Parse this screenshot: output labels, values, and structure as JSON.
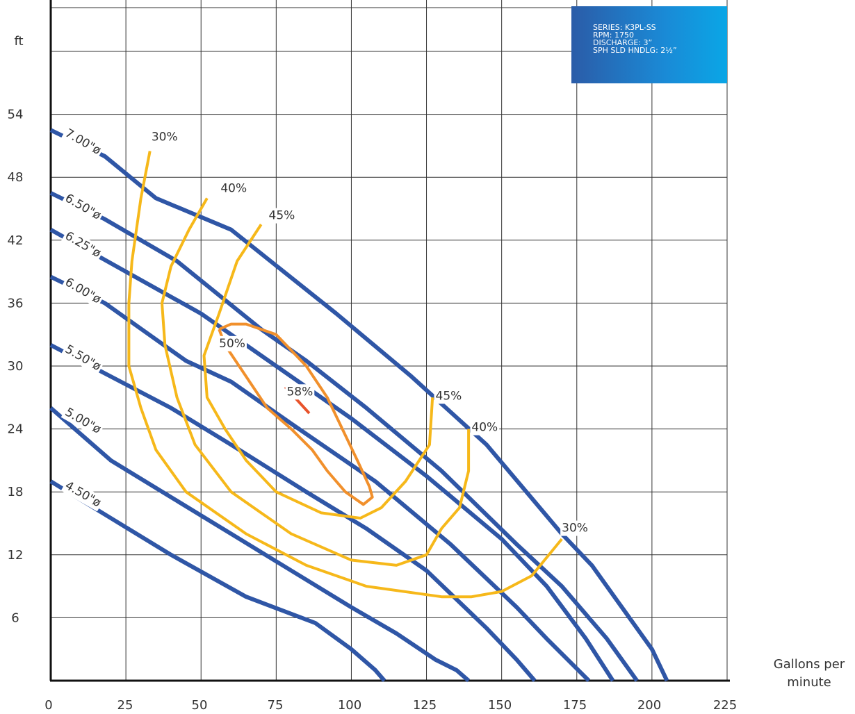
{
  "chart_data": {
    "type": "line",
    "title": "",
    "xlabel": "Gallons per minute",
    "ylabel": "ft",
    "xlim": [
      0,
      225
    ],
    "ylim": [
      0,
      60
    ],
    "x_ticks": [
      0,
      25,
      50,
      75,
      100,
      125,
      150,
      175,
      200,
      225
    ],
    "y_ticks": [
      6,
      12,
      18,
      24,
      30,
      36,
      42,
      48,
      54
    ],
    "grid": true,
    "info": [
      "SERIES: K3PL-SS",
      "RPM: 1750",
      "DISCHARGE: 3”",
      "SPH SLD HNDLG: 2½”"
    ],
    "series": [
      {
        "name": "7.00\"ø",
        "type": "impeller",
        "x": [
          0,
          18,
          35,
          60,
          95,
          120,
          145,
          170,
          180,
          190,
          200,
          205
        ],
        "y": [
          52.5,
          50,
          46,
          43,
          35,
          29,
          22.5,
          14,
          11,
          7,
          3,
          0
        ]
      },
      {
        "name": "6.50\"ø",
        "type": "impeller",
        "x": [
          0,
          18,
          42,
          70,
          85,
          105,
          130,
          155,
          170,
          185,
          195
        ],
        "y": [
          46.5,
          44,
          40,
          33.5,
          30.5,
          26,
          20,
          13,
          9,
          4,
          0
        ]
      },
      {
        "name": "6.25\"ø",
        "type": "impeller",
        "x": [
          0,
          25,
          50,
          75,
          100,
          125,
          150,
          165,
          178,
          187
        ],
        "y": [
          43,
          39,
          35,
          30,
          25,
          19.5,
          13.5,
          9,
          4,
          0
        ]
      },
      {
        "name": "6.00\"ø",
        "type": "impeller",
        "x": [
          0,
          18,
          45,
          60,
          80,
          108,
          133,
          155,
          165,
          179
        ],
        "y": [
          38.5,
          36,
          30.5,
          28.5,
          24.5,
          19,
          13,
          7,
          4,
          0
        ]
      },
      {
        "name": "5.50\"ø",
        "type": "impeller",
        "x": [
          0,
          20,
          40,
          60,
          85,
          105,
          125,
          145,
          155,
          161
        ],
        "y": [
          32,
          29,
          26,
          22.5,
          18,
          14.5,
          10.5,
          5,
          2,
          0
        ]
      },
      {
        "name": "5.00\"ø",
        "type": "impeller",
        "x": [
          0,
          20,
          40,
          60,
          80,
          100,
          115,
          128,
          135,
          139
        ],
        "y": [
          26,
          21,
          17.5,
          14,
          10.5,
          7,
          4.5,
          2,
          1,
          0
        ]
      },
      {
        "name": "4.50\"ø",
        "type": "impeller",
        "x": [
          0,
          20,
          40,
          65,
          88,
          100,
          108,
          111
        ],
        "y": [
          19,
          15.5,
          12,
          8,
          5.5,
          3,
          1,
          0
        ]
      },
      {
        "name": "30%",
        "type": "efficiency",
        "x": [
          33,
          30,
          27,
          26,
          26,
          30,
          35,
          45,
          65,
          85,
          105,
          130,
          140,
          150,
          160,
          170
        ],
        "y": [
          50.5,
          46,
          40,
          36,
          30,
          26,
          22,
          18,
          14,
          11,
          9,
          8,
          8,
          8.5,
          10,
          13.5
        ]
      },
      {
        "name": "40%",
        "type": "efficiency",
        "x": [
          52,
          46,
          40,
          37,
          38,
          42,
          48,
          60,
          80,
          100,
          115,
          125,
          130,
          136,
          139,
          139
        ],
        "y": [
          46,
          43,
          39.5,
          36,
          32,
          27,
          22.5,
          18,
          14,
          11.5,
          11,
          12,
          14.5,
          16.5,
          20,
          24
        ]
      },
      {
        "name": "45%",
        "type": "efficiency",
        "x": [
          70,
          62,
          56,
          51,
          52,
          58,
          65,
          75,
          90,
          103,
          110,
          118,
          126,
          127
        ],
        "y": [
          43.5,
          40,
          35,
          31,
          27,
          24,
          21,
          18,
          16,
          15.5,
          16.5,
          19,
          22.5,
          27
        ]
      },
      {
        "name": "50%",
        "type": "efficiency",
        "x": [
          56,
          60,
          65,
          75,
          85,
          92,
          97,
          102,
          106,
          107,
          104,
          98,
          92,
          87,
          80,
          72,
          65,
          58,
          56
        ],
        "y": [
          33.5,
          34,
          34,
          33,
          30,
          27,
          24,
          21,
          18.5,
          17.5,
          16.8,
          18,
          20,
          22,
          24,
          26,
          29,
          32,
          33.5
        ]
      },
      {
        "name": "58%",
        "type": "efficiency",
        "x": [
          86,
          78
        ],
        "y": [
          25.5,
          28
        ]
      }
    ],
    "curve_labels": [
      {
        "text": "7.00\"ø",
        "x": 4.5,
        "y": 52
      },
      {
        "text": "6.50\"ø",
        "x": 4.5,
        "y": 45.8
      },
      {
        "text": "6.25\"ø",
        "x": 4.5,
        "y": 42.2
      },
      {
        "text": "6.00\"ø",
        "x": 4.5,
        "y": 37.8
      },
      {
        "text": "5.50\"ø",
        "x": 4.5,
        "y": 31.4
      },
      {
        "text": "5.00\"ø",
        "x": 4.5,
        "y": 25.4
      },
      {
        "text": "4.50\"ø",
        "x": 4.5,
        "y": 18.4
      },
      {
        "text": "30%",
        "x": 33.5,
        "y": 51.5
      },
      {
        "text": "40%",
        "x": 56.5,
        "y": 46.6
      },
      {
        "text": "45%",
        "x": 72.5,
        "y": 44
      },
      {
        "text": "50%",
        "x": 56,
        "y": 31.8
      },
      {
        "text": "58%",
        "x": 78.5,
        "y": 27.2
      },
      {
        "text": "45%",
        "x": 128,
        "y": 26.8
      },
      {
        "text": "40%",
        "x": 140,
        "y": 23.8
      },
      {
        "text": "30%",
        "x": 170,
        "y": 14.2
      }
    ],
    "colors": {
      "impeller": "#2f56a6",
      "eff30": "#f6b81a",
      "eff40": "#f6b81a",
      "eff45": "#f6b81a",
      "eff50": "#f1902c",
      "eff58": "#e8532b",
      "hot45": "#e8532b",
      "hot40": "#e8532b",
      "hot30": "#ec6a2a",
      "grid": "#333333"
    }
  }
}
